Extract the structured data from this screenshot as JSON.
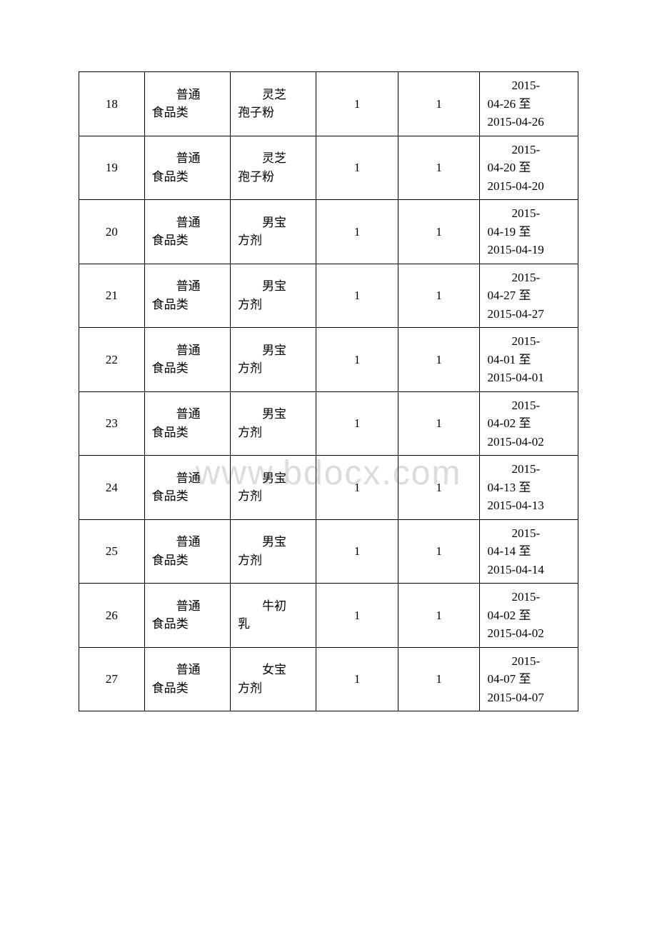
{
  "watermark": "www.bdocx.com",
  "table": {
    "columns": [
      "index",
      "category",
      "product",
      "num1",
      "num2",
      "date"
    ],
    "rows": [
      {
        "index": "18",
        "category": "普通食品类",
        "product": "灵芝孢子粉",
        "num1": "1",
        "num2": "1",
        "date1": "2015-04-26 至",
        "date2": "2015-04-26"
      },
      {
        "index": "19",
        "category": "普通食品类",
        "product": "灵芝孢子粉",
        "num1": "1",
        "num2": "1",
        "date1": "2015-04-20 至",
        "date2": "2015-04-20"
      },
      {
        "index": "20",
        "category": "普通食品类",
        "product": "男宝方剂",
        "num1": "1",
        "num2": "1",
        "date1": "2015-04-19 至",
        "date2": "2015-04-19"
      },
      {
        "index": "21",
        "category": "普通食品类",
        "product": "男宝方剂",
        "num1": "1",
        "num2": "1",
        "date1": "2015-04-27 至",
        "date2": "2015-04-27"
      },
      {
        "index": "22",
        "category": "普通食品类",
        "product": "男宝方剂",
        "num1": "1",
        "num2": "1",
        "date1": "2015-04-01 至",
        "date2": "2015-04-01"
      },
      {
        "index": "23",
        "category": "普通食品类",
        "product": "男宝方剂",
        "num1": "1",
        "num2": "1",
        "date1": "2015-04-02 至",
        "date2": "2015-04-02"
      },
      {
        "index": "24",
        "category": "普通食品类",
        "product": "男宝方剂",
        "num1": "1",
        "num2": "1",
        "date1": "2015-04-13 至",
        "date2": "2015-04-13"
      },
      {
        "index": "25",
        "category": "普通食品类",
        "product": "男宝方剂",
        "num1": "1",
        "num2": "1",
        "date1": "2015-04-14 至",
        "date2": "2015-04-14"
      },
      {
        "index": "26",
        "category": "普通食品类",
        "product": "牛初乳",
        "num1": "1",
        "num2": "1",
        "date1": "2015-04-02 至",
        "date2": "2015-04-02"
      },
      {
        "index": "27",
        "category": "普通食品类",
        "product": "女宝方剂",
        "num1": "1",
        "num2": "1",
        "date1": "2015-04-07 至",
        "date2": "2015-04-07"
      }
    ]
  }
}
